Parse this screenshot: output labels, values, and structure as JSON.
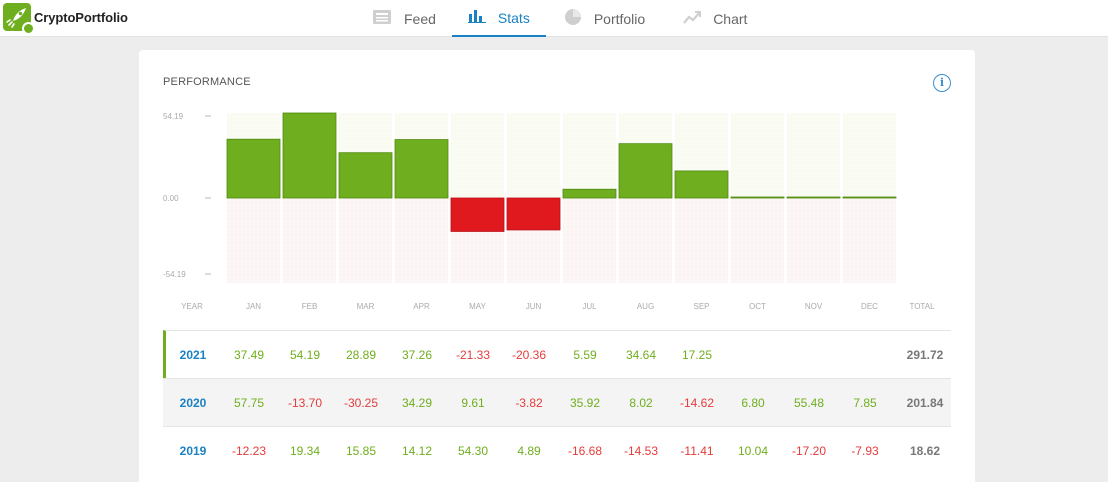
{
  "app": {
    "name": "CryptoPortfolio"
  },
  "nav": {
    "tabs": [
      {
        "label": "Feed",
        "icon": "feed-icon",
        "active": false
      },
      {
        "label": "Stats",
        "icon": "bar-chart-icon",
        "active": true
      },
      {
        "label": "Portfolio",
        "icon": "pie-chart-icon",
        "active": false
      },
      {
        "label": "Chart",
        "icon": "line-chart-icon",
        "active": false
      }
    ]
  },
  "performance": {
    "title": "PERFORMANCE",
    "info_icon": "i"
  },
  "colors": {
    "positive": "#6fae1e",
    "negative": "#e0191f",
    "accent": "#1a82c4"
  },
  "chart_data": {
    "type": "bar",
    "categories": [
      "JAN",
      "FEB",
      "MAR",
      "APR",
      "MAY",
      "JUN",
      "JUL",
      "AUG",
      "SEP",
      "OCT",
      "NOV",
      "DEC"
    ],
    "values": [
      37.49,
      54.19,
      28.89,
      37.26,
      -21.33,
      -20.36,
      5.59,
      34.64,
      17.25,
      0,
      0,
      0
    ],
    "yticks": [
      "54.19",
      "0.00",
      "-54.19"
    ],
    "ylim": [
      -54.19,
      54.19
    ],
    "xlabel_first": "YEAR",
    "xlabel_last": "TOTAL"
  },
  "table": {
    "rows": [
      {
        "year": "2021",
        "values": [
          "37.49",
          "54.19",
          "28.89",
          "37.26",
          "-21.33",
          "-20.36",
          "5.59",
          "34.64",
          "17.25",
          "",
          "",
          ""
        ],
        "total": "291.72",
        "current": true
      },
      {
        "year": "2020",
        "values": [
          "57.75",
          "-13.70",
          "-30.25",
          "34.29",
          "9.61",
          "-3.82",
          "35.92",
          "8.02",
          "-14.62",
          "6.80",
          "55.48",
          "7.85"
        ],
        "total": "201.84",
        "current": false
      },
      {
        "year": "2019",
        "values": [
          "-12.23",
          "19.34",
          "15.85",
          "14.12",
          "54.30",
          "4.89",
          "-16.68",
          "-14.53",
          "-11.41",
          "10.04",
          "-17.20",
          "-7.93"
        ],
        "total": "18.62",
        "current": false
      }
    ]
  }
}
